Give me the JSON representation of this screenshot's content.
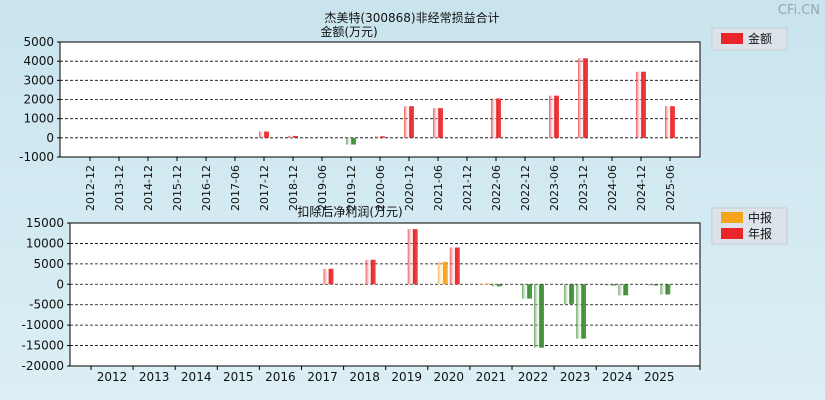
{
  "watermark": "CFi.CN",
  "chart_data": [
    {
      "type": "bar",
      "title": "杰美特(300868)非经常损益合计",
      "subtitle": "金额(万元)",
      "categories": [
        "2012-12",
        "2013-12",
        "2014-12",
        "2015-12",
        "2016-12",
        "2017-06",
        "2017-12",
        "2018-12",
        "2019-06",
        "2019-12",
        "2020-06",
        "2020-12",
        "2021-06",
        "2021-12",
        "2022-06",
        "2022-12",
        "2023-06",
        "2023-12",
        "2024-06",
        "2024-12",
        "2025-06"
      ],
      "series": [
        {
          "name": "金额",
          "values": [
            null,
            null,
            null,
            null,
            null,
            null,
            330,
            100,
            null,
            -350,
            80,
            1650,
            1550,
            null,
            2050,
            null,
            2200,
            4150,
            null,
            3450,
            1650
          ],
          "color": "#e8262a",
          "neg_color": "#3a8a32"
        }
      ],
      "y_ticks": [
        "5000",
        "4000",
        "3000",
        "2000",
        "1000",
        "0",
        "-1000"
      ],
      "ylim": [
        -1000,
        5000
      ],
      "grid": true,
      "legend_position": "top-right"
    },
    {
      "type": "bar",
      "title": "扣除后净利润(万元)",
      "categories": [
        "2012",
        "2013",
        "2014",
        "2015",
        "2016",
        "2017",
        "2018",
        "2019",
        "2020",
        "2021",
        "2022",
        "2023",
        "2024",
        "2025"
      ],
      "series": [
        {
          "name": "中报",
          "values": [
            null,
            null,
            null,
            null,
            null,
            null,
            null,
            null,
            5500,
            200,
            -3500,
            -4800,
            -300,
            -300
          ],
          "color": "#f5a31a"
        },
        {
          "name": "年报",
          "values": [
            null,
            null,
            null,
            null,
            null,
            3800,
            6000,
            13500,
            9000,
            -500,
            -15500,
            -13300,
            -2700,
            -2500
          ],
          "color": "#e8262a",
          "neg_color": "#3a8a32"
        }
      ],
      "y_ticks": [
        "15000",
        "10000",
        "5000",
        "0",
        "-5000",
        "-10000",
        "-15000",
        "-20000"
      ],
      "ylim": [
        -20000,
        15000
      ],
      "grid": true,
      "legend_position": "top-right"
    }
  ]
}
